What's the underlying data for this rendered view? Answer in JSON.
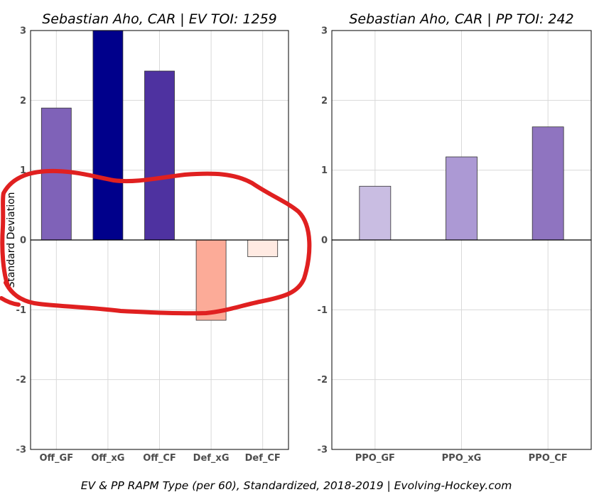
{
  "chart_data": [
    {
      "type": "bar",
      "title": "Sebastian Aho, CAR  |  EV TOI: 1259",
      "ylabel": "Standard Deviation",
      "ylim": [
        -3,
        3
      ],
      "yticks": [
        -3,
        -2,
        -1,
        0,
        1,
        2,
        3
      ],
      "categories": [
        "Off_GF",
        "Off_xG",
        "Off_CF",
        "Def_xG",
        "Def_CF"
      ],
      "values": [
        1.89,
        3.0,
        2.42,
        -1.15,
        -0.24
      ],
      "colors": [
        "#7f62b8",
        "#00008b",
        "#4e32a0",
        "#fcab98",
        "#ffeae2"
      ]
    },
    {
      "type": "bar",
      "title": "Sebastian Aho, CAR  |  PP TOI: 242",
      "ylabel": "",
      "ylim": [
        -3,
        3
      ],
      "yticks": [
        -3,
        -2,
        -1,
        0,
        1,
        2,
        3
      ],
      "categories": [
        "PPO_GF",
        "PPO_xG",
        "PPO_CF"
      ],
      "values": [
        0.77,
        1.19,
        1.62
      ],
      "colors": [
        "#c9bde2",
        "#ac99d4",
        "#8f74c0"
      ]
    }
  ],
  "caption": "EV & PP RAPM Type (per 60), Standardized, 2018-2019    |    Evolving-Hockey.com",
  "annotation": {
    "type": "hand-drawn-ellipse",
    "color": "#e02020"
  }
}
